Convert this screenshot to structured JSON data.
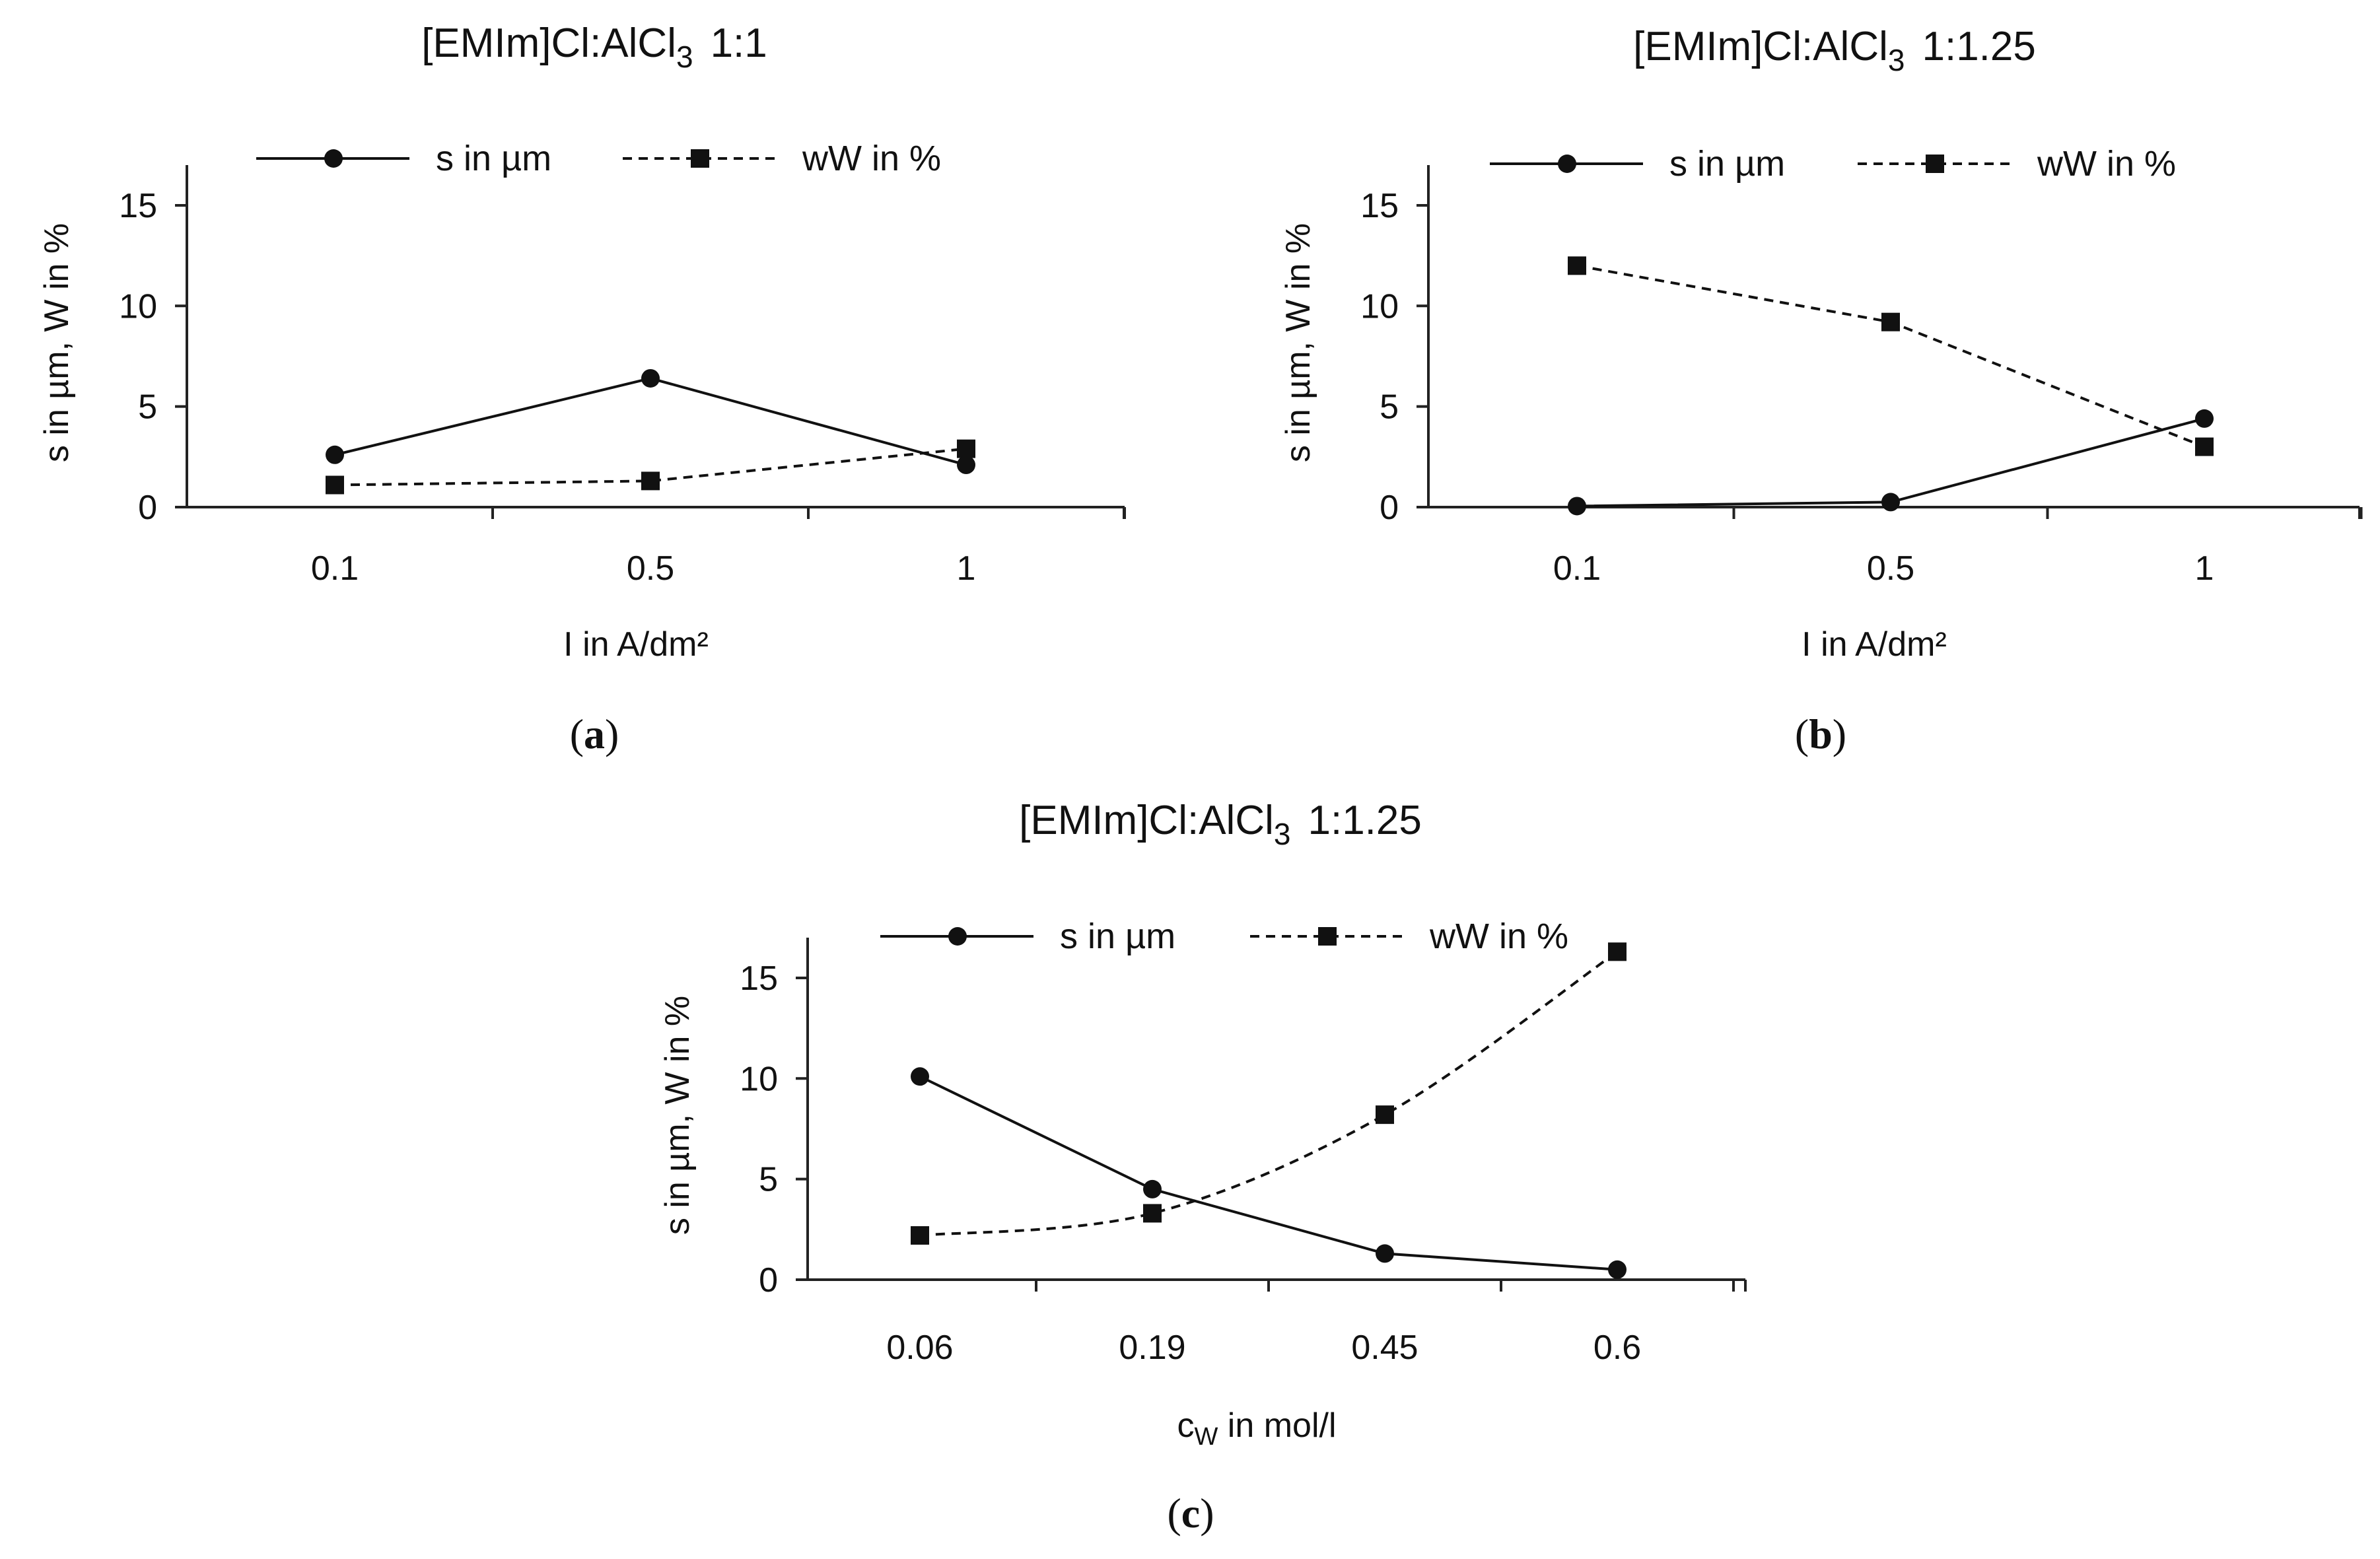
{
  "chart_data": [
    {
      "type": "line",
      "panel_label": "a",
      "title": "[EMIm]Cl:AlCl",
      "title_sub": "3",
      "title_suffix": "1:1",
      "xlabel": "I in A/dm²",
      "xlabel_sub": "",
      "xlabel_suffix": "",
      "ylabel": "s in µm, W in %",
      "categories": [
        "0.1",
        "0.5",
        "1"
      ],
      "yticks": [
        "0",
        "5",
        "10",
        "15"
      ],
      "ylim": [
        0,
        17
      ],
      "legend_position": "top-center",
      "series": [
        {
          "name": "s in µm",
          "style": "solid",
          "marker": "circle",
          "values": [
            2.6,
            6.4,
            2.1
          ]
        },
        {
          "name": "wW in %",
          "style": "dashed",
          "marker": "square",
          "values": [
            1.1,
            1.3,
            2.9
          ]
        }
      ]
    },
    {
      "type": "line",
      "panel_label": "b",
      "title": "[EMIm]Cl:AlCl",
      "title_sub": "3",
      "title_suffix": "1:1.25",
      "xlabel": "I in A/dm²",
      "xlabel_sub": "",
      "xlabel_suffix": "",
      "ylabel": "s in µm, W in %",
      "categories": [
        "0.1",
        "0.5",
        "1"
      ],
      "yticks": [
        "0",
        "5",
        "10",
        "15"
      ],
      "ylim": [
        0,
        17
      ],
      "legend_position": "top-center",
      "series": [
        {
          "name": "s in µm",
          "style": "solid",
          "marker": "circle",
          "values": [
            0.05,
            0.25,
            4.4
          ]
        },
        {
          "name": "wW in %",
          "style": "dashed",
          "marker": "square",
          "values": [
            12.0,
            9.2,
            3.0
          ]
        }
      ]
    },
    {
      "type": "line",
      "panel_label": "c",
      "title": "[EMIm]Cl:AlCl",
      "title_sub": "3",
      "title_suffix": "1:1.25",
      "xlabel": "c",
      "xlabel_sub": "W",
      "xlabel_suffix": " in mol/l",
      "ylabel": "s in µm, W in %",
      "categories": [
        "0.06",
        "0.19",
        "0.45",
        "0.6"
      ],
      "yticks": [
        "0",
        "5",
        "10",
        "15"
      ],
      "ylim": [
        0,
        17
      ],
      "legend_position": "top-center",
      "series": [
        {
          "name": "s in µm",
          "style": "solid",
          "marker": "circle",
          "values": [
            10.1,
            4.5,
            1.3,
            0.5
          ]
        },
        {
          "name": "wW in %",
          "style": "dashed",
          "marker": "square",
          "values": [
            2.2,
            3.3,
            8.2,
            16.3
          ]
        }
      ]
    }
  ]
}
